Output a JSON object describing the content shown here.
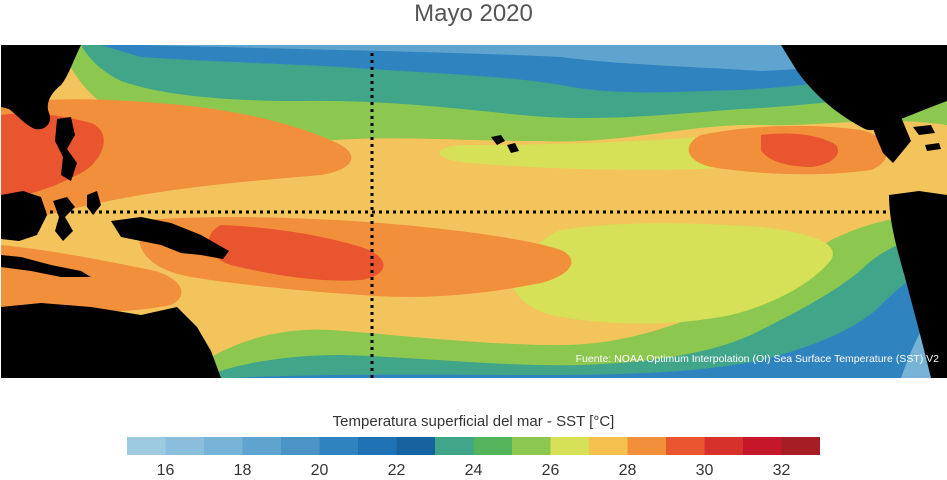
{
  "title": "Mayo 2020",
  "source_note": "Fuente: NOAA Optimum Interpolation (OI) Sea Surface Temperature (SST) V2",
  "colorbar": {
    "label": "Temperatura superficial del mar - SST  [°C]",
    "colors": [
      "#9ecae1",
      "#8bbedc",
      "#77b3d6",
      "#5fa3cf",
      "#4a94c6",
      "#2f83bf",
      "#1f73b4",
      "#17639f",
      "#41a58a",
      "#53b45c",
      "#8cc84f",
      "#d6e157",
      "#f6c04f",
      "#f18f3a",
      "#e8552f",
      "#d6322b",
      "#c4182a",
      "#a71d26"
    ],
    "tick_labels": [
      "16",
      "18",
      "20",
      "22",
      "24",
      "26",
      "28",
      "30",
      "32"
    ]
  }
}
